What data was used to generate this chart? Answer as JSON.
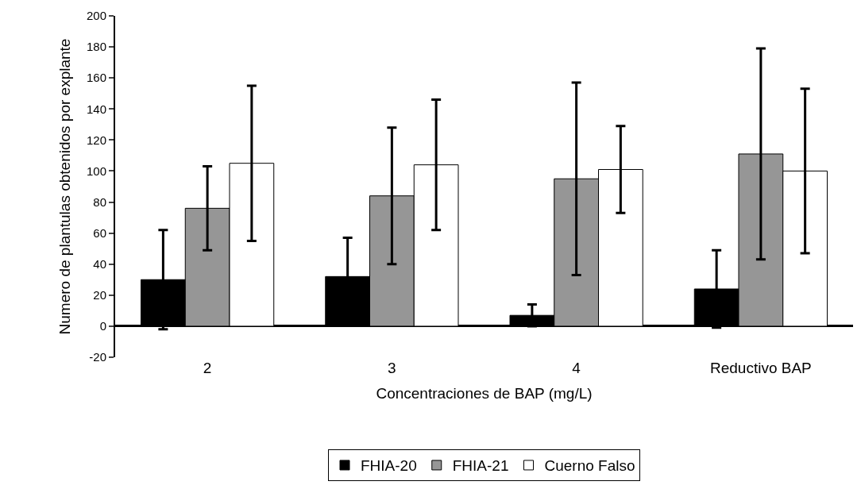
{
  "chart_data": {
    "type": "bar",
    "xlabel": "Concentraciones de BAP (mg/L)",
    "ylabel": "Numero de plantulas obtenidos por explante",
    "categories": [
      "2",
      "3",
      "4",
      "Reductivo BAP"
    ],
    "series": [
      {
        "name": "FHIA-20",
        "color": "#000000",
        "values": [
          30,
          32,
          7,
          24
        ],
        "errors": [
          32,
          25,
          7,
          25
        ]
      },
      {
        "name": "FHIA-21",
        "color": "#969696",
        "values": [
          76,
          84,
          95,
          111
        ],
        "errors": [
          27,
          44,
          62,
          68
        ]
      },
      {
        "name": "Cuerno Falso",
        "color": "#ffffff",
        "values": [
          105,
          104,
          101,
          100
        ],
        "errors": [
          50,
          42,
          28,
          53
        ]
      }
    ],
    "ylim": [
      -20,
      200
    ],
    "yticks": [
      -20,
      0,
      20,
      40,
      60,
      80,
      100,
      120,
      140,
      160,
      180,
      200
    ],
    "grid": false,
    "legend": "bottom"
  }
}
